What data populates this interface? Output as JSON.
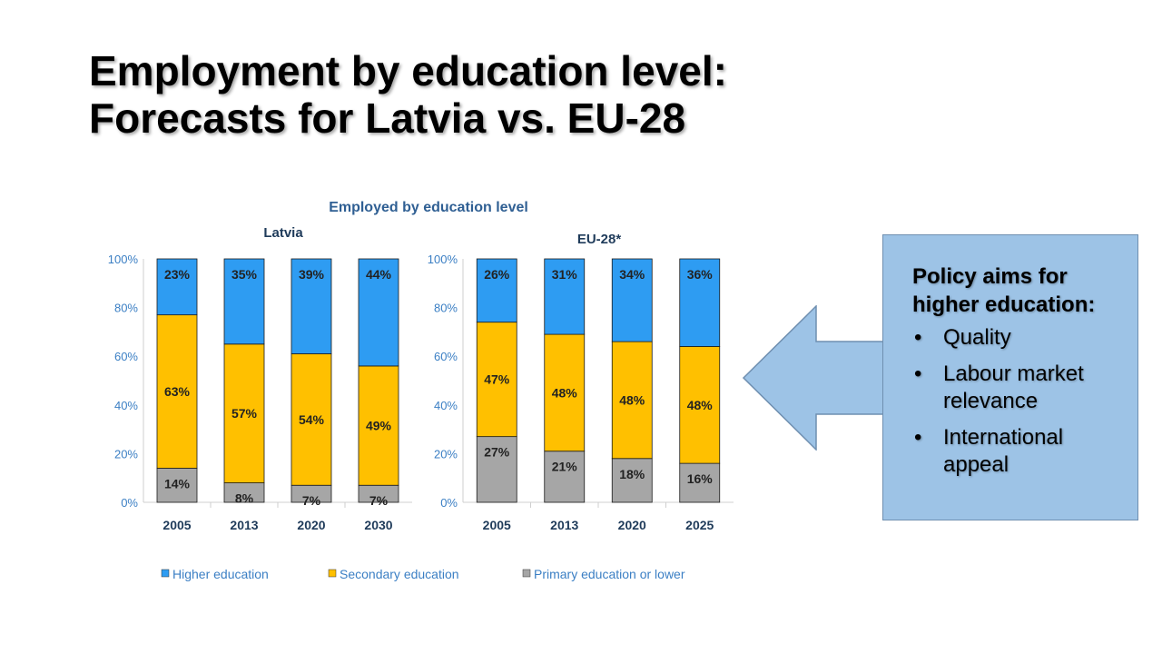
{
  "slide": {
    "title_line1": "Employment by education level:",
    "title_line2": "Forecasts for Latvia vs. EU-28"
  },
  "chart_data": [
    {
      "type": "bar",
      "stacked": true,
      "title": "Employed by education level",
      "subtitle": "Latvia",
      "categories": [
        "2005",
        "2013",
        "2020",
        "2030"
      ],
      "ylim": [
        0,
        100
      ],
      "y_ticks": [
        "0%",
        "20%",
        "40%",
        "60%",
        "80%",
        "100%"
      ],
      "grid": false,
      "series": [
        {
          "name": "Primary education or lower",
          "color": "#a6a6a6",
          "values": [
            14,
            8,
            7,
            7
          ],
          "labels": [
            "14%",
            "8%",
            "7%",
            "7%"
          ]
        },
        {
          "name": "Secondary education",
          "color": "#ffc000",
          "values": [
            63,
            57,
            54,
            49
          ],
          "labels": [
            "63%",
            "57%",
            "54%",
            "49%"
          ]
        },
        {
          "name": "Higher education",
          "color": "#2e9cf2",
          "values": [
            23,
            35,
            39,
            44
          ],
          "labels": [
            "23%",
            "35%",
            "39%",
            "44%"
          ]
        }
      ]
    },
    {
      "type": "bar",
      "stacked": true,
      "subtitle": "EU-28*",
      "categories": [
        "2005",
        "2013",
        "2020",
        "2025"
      ],
      "ylim": [
        0,
        100
      ],
      "y_ticks": [
        "0%",
        "20%",
        "40%",
        "60%",
        "80%",
        "100%"
      ],
      "grid": false,
      "series": [
        {
          "name": "Primary education or lower",
          "color": "#a6a6a6",
          "values": [
            27,
            21,
            18,
            16
          ],
          "labels": [
            "27%",
            "21%",
            "18%",
            "16%"
          ]
        },
        {
          "name": "Secondary education",
          "color": "#ffc000",
          "values": [
            47,
            48,
            48,
            48
          ],
          "labels": [
            "47%",
            "48%",
            "48%",
            "48%"
          ]
        },
        {
          "name": "Higher education",
          "color": "#2e9cf2",
          "values": [
            26,
            31,
            34,
            36
          ],
          "labels": [
            "26%",
            "31%",
            "34%",
            "36%"
          ]
        }
      ]
    }
  ],
  "legend": {
    "placement": "bottom",
    "items": [
      {
        "label": "Higher education",
        "color": "#2e9cf2"
      },
      {
        "label": "Secondary education",
        "color": "#ffc000"
      },
      {
        "label": "Primary education or lower",
        "color": "#a6a6a6"
      }
    ]
  },
  "callout": {
    "heading": "Policy aims for higher education:",
    "items": [
      "Quality",
      "Labour market relevance",
      "International appeal"
    ],
    "box_color": "#9dc3e6",
    "arrow_color": "#9dc3e6"
  },
  "colors": {
    "axis_text": "#3b7fc4",
    "chart_title": "#2f5f93"
  }
}
